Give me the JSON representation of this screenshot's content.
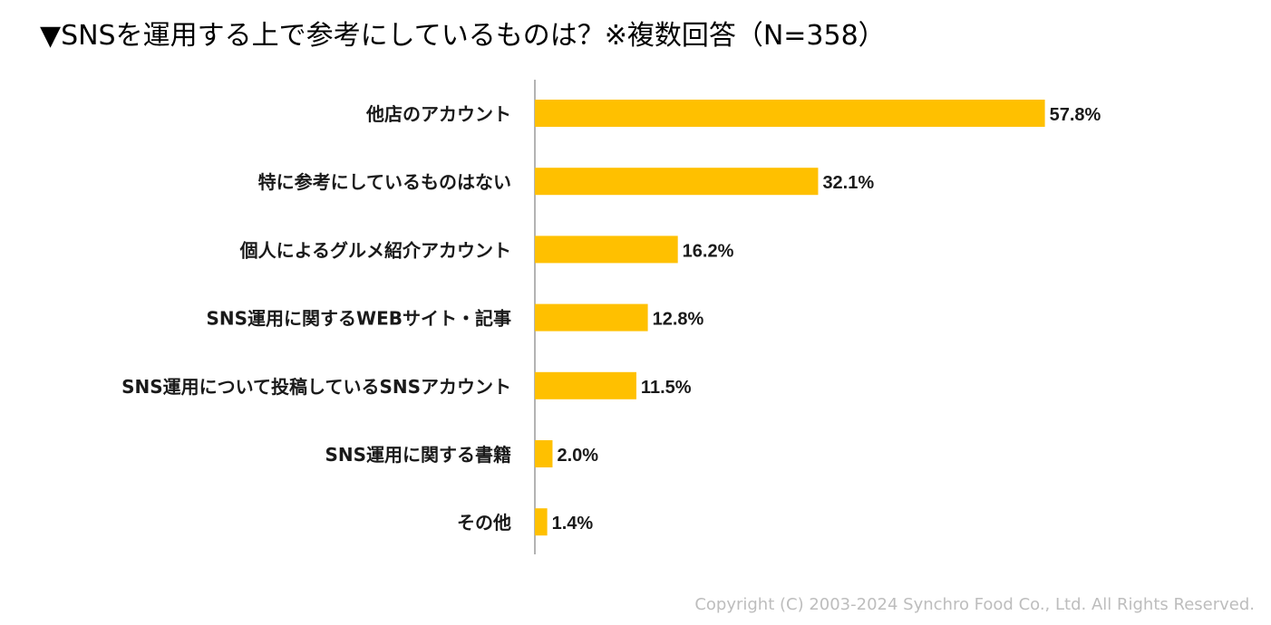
{
  "chart_data": {
    "type": "bar",
    "orientation": "horizontal",
    "title": "▼SNSを運用する上で参考にしているものは？※複数回答（N=358）",
    "categories": [
      "他店のアカウント",
      "特に参考にしているものはない",
      "個人によるグルメ紹介アカウント",
      "SNS運用に関するWEBサイト・記事",
      "SNS運用について投稿しているSNSアカウント",
      "SNS運用に関する書籍",
      "その他"
    ],
    "values": [
      57.8,
      32.1,
      16.2,
      12.8,
      11.5,
      2.0,
      1.4
    ],
    "value_labels": [
      "57.8%",
      "32.1%",
      "16.2%",
      "12.8%",
      "11.5%",
      "2.0%",
      "1.4%"
    ],
    "unit": "%",
    "xlim": [
      0,
      60
    ],
    "grid": false,
    "bar_color": "#FFC000"
  },
  "footer": {
    "copyright": "Copyright (C) 2003-2024  Synchro Food Co., Ltd. All Rights Reserved."
  }
}
